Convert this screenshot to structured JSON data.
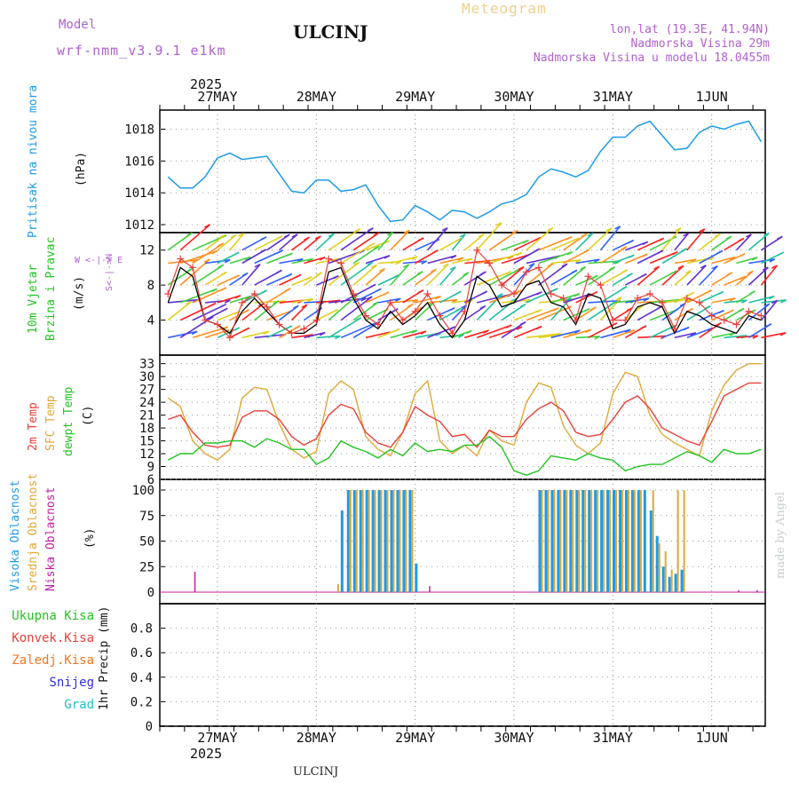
{
  "header": {
    "model_label": "Model",
    "model_value": "wrf-nmm_v3.9.1 e1km",
    "station": "ULCINJ",
    "meteogram": "Meteogram",
    "lonlat": "lon,lat (19.3E, 41.94N)",
    "elevation": "Nadmorska Visina 29m",
    "model_elevation": "Nadmorska Visina u modelu 18.0455m",
    "footer_station": "ULCINJ",
    "watermark": "made by Angel"
  },
  "colors": {
    "pressure": "#1e9be6",
    "temp2m": "#e8403a",
    "sfc": "#e0a838",
    "dew": "#22c322",
    "high": "#1e9be6",
    "mid": "#e0a838",
    "low": "#c020a0",
    "purple": "#b060d0",
    "total": "#22c322",
    "conv": "#e8403a",
    "freezing": "#f07820",
    "snow": "#3030e0",
    "hail": "#20c0c0"
  },
  "chart_data": [
    {
      "type": "line",
      "panel": "pressure",
      "ylabel_name": "Pritisak na nivou mora",
      "ylabel_unit": "(hPa)",
      "year": "2025",
      "date_labels": [
        "27MAY",
        "28MAY",
        "29MAY",
        "30MAY",
        "31MAY",
        "1JUN"
      ],
      "ylim": [
        1011.5,
        1019.2
      ],
      "yticks": [
        1012,
        1014,
        1016,
        1018
      ],
      "x_hours": [
        0,
        3,
        6,
        9,
        12,
        15,
        18,
        21,
        24,
        27,
        30,
        33,
        36,
        39,
        42,
        45,
        48,
        51,
        54,
        57,
        60,
        63,
        66,
        69,
        72,
        75,
        78,
        81,
        84,
        87,
        90,
        93,
        96,
        99,
        102,
        105,
        108,
        111,
        114,
        117,
        120,
        123,
        126,
        129,
        132,
        135,
        138,
        141,
        144
      ],
      "values": [
        1015.0,
        1014.3,
        1014.3,
        1015.0,
        1016.2,
        1016.5,
        1016.1,
        1016.2,
        1016.3,
        1015.2,
        1014.1,
        1014.0,
        1014.8,
        1014.8,
        1014.1,
        1014.2,
        1014.5,
        1013.2,
        1012.2,
        1012.3,
        1013.2,
        1012.8,
        1012.3,
        1012.9,
        1012.8,
        1012.4,
        1012.8,
        1013.3,
        1013.5,
        1013.9,
        1015.0,
        1015.5,
        1015.3,
        1015.0,
        1015.4,
        1016.6,
        1017.5,
        1017.5,
        1018.2,
        1018.5,
        1017.6,
        1016.7,
        1016.8,
        1017.8,
        1018.2,
        1018.0,
        1018.3,
        1018.5,
        1017.2
      ]
    },
    {
      "type": "line",
      "panel": "wind",
      "ylabel_name": "10m Vjetar Brzina i Pravac",
      "ylabel_unit": "(m/s)",
      "compass": "W <- N S -> E",
      "ylim": [
        0,
        14
      ],
      "yticks": [
        4,
        8,
        12
      ],
      "x_hours": [
        0,
        3,
        6,
        9,
        12,
        15,
        18,
        21,
        24,
        27,
        30,
        33,
        36,
        39,
        42,
        45,
        48,
        51,
        54,
        57,
        60,
        63,
        66,
        69,
        72,
        75,
        78,
        81,
        84,
        87,
        90,
        93,
        96,
        99,
        102,
        105,
        108,
        111,
        114,
        117,
        120,
        123,
        126,
        129,
        132,
        135,
        138,
        141,
        144
      ],
      "series": [
        {
          "name": "speed",
          "values": [
            6,
            10,
            9,
            4,
            3.5,
            2.5,
            5,
            6.5,
            5,
            3.5,
            2.5,
            2.5,
            3.5,
            9.5,
            10,
            6.5,
            4,
            3,
            5,
            3.5,
            4.5,
            6,
            3.5,
            2,
            4,
            9,
            8,
            5.5,
            6,
            8,
            8.5,
            6,
            5.5,
            3.5,
            7,
            6.5,
            3,
            3.5,
            5.5,
            6,
            5.5,
            2.5,
            5,
            4.5,
            3.5,
            3,
            2.5,
            4.5,
            4
          ]
        },
        {
          "name": "gust",
          "values": [
            7,
            11,
            10,
            4,
            3.5,
            2,
            6,
            7,
            5.5,
            3.5,
            2.5,
            3,
            4,
            11,
            10.5,
            7,
            4.5,
            3.5,
            6,
            4,
            5,
            7,
            4.5,
            2.5,
            5,
            12,
            10.5,
            8,
            7,
            9.5,
            10,
            7,
            6.5,
            4,
            9,
            8,
            4,
            4,
            6.5,
            7,
            6,
            3,
            6.5,
            6,
            4.5,
            4,
            3.5,
            5,
            4.5
          ]
        }
      ]
    },
    {
      "type": "line",
      "panel": "temperature",
      "ylabel_name": "2m Temp",
      "ylabel_sfc": "SFC Temp",
      "ylabel_dew": "dewpt Temp",
      "ylabel_unit": "(C)",
      "ylim": [
        6,
        35
      ],
      "yticks": [
        6,
        9,
        12,
        15,
        18,
        21,
        24,
        27,
        30,
        33,
        36
      ],
      "x_hours": [
        0,
        3,
        6,
        9,
        12,
        15,
        18,
        21,
        24,
        27,
        30,
        33,
        36,
        39,
        42,
        45,
        48,
        51,
        54,
        57,
        60,
        63,
        66,
        69,
        72,
        75,
        78,
        81,
        84,
        87,
        90,
        93,
        96,
        99,
        102,
        105,
        108,
        111,
        114,
        117,
        120,
        123,
        126,
        129,
        132,
        135,
        138,
        141,
        144
      ],
      "series": [
        {
          "name": "2m",
          "values": [
            20,
            21,
            17,
            14,
            13.5,
            14,
            20.5,
            22,
            22,
            20,
            16,
            14,
            15.5,
            21,
            23.5,
            22.5,
            17,
            14.5,
            13.5,
            17,
            23,
            21,
            19.5,
            16,
            16.5,
            13.5,
            17.5,
            16,
            16,
            20,
            22.5,
            24,
            22,
            17,
            16,
            16.5,
            20,
            24,
            25.5,
            22.5,
            18,
            16.5,
            15,
            14,
            19.5,
            25.5,
            27,
            28.5,
            28.5
          ]
        },
        {
          "name": "SFC",
          "values": [
            25,
            23,
            15,
            12,
            10.5,
            13,
            25,
            27.5,
            27,
            19,
            13,
            11,
            12.5,
            26,
            29,
            27,
            16,
            13,
            11.5,
            17,
            26,
            29,
            15,
            12,
            14,
            11.5,
            17.5,
            15,
            14,
            24,
            28.5,
            27.5,
            18.5,
            14,
            12,
            14.5,
            26,
            31,
            30,
            21,
            16.5,
            14.5,
            13,
            11.5,
            22,
            28,
            31.5,
            33,
            33
          ]
        },
        {
          "name": "dewpoint",
          "values": [
            10.5,
            12,
            12,
            14.5,
            14.5,
            15,
            15,
            13.5,
            15.5,
            14.5,
            13,
            13,
            9.5,
            11,
            15,
            13.5,
            12.5,
            11,
            13,
            11.5,
            14.5,
            12.5,
            13,
            12.5,
            14,
            14,
            16,
            13.5,
            8,
            7,
            8,
            11.5,
            11,
            10.5,
            12,
            11,
            10.5,
            8,
            9,
            9.5,
            9.5,
            11,
            12.5,
            11.5,
            10,
            13,
            12,
            12,
            13
          ]
        }
      ]
    },
    {
      "type": "bar",
      "panel": "clouds",
      "ylabel_high": "Visoka Oblacnost",
      "ylabel_mid": "Srednja Oblacnost",
      "ylabel_low": "Niska Oblacnost",
      "ylabel_unit": "(%)",
      "ylim": [
        0,
        100
      ],
      "yticks": [
        0,
        25,
        50,
        75,
        100
      ],
      "x_hours": [
        0,
        3,
        6,
        9,
        12,
        15,
        18,
        21,
        24,
        27,
        30,
        33,
        36,
        39,
        42,
        45,
        48,
        51,
        54,
        57,
        60,
        63,
        66,
        69,
        72,
        75,
        78,
        81,
        84,
        87,
        90,
        93,
        96,
        99,
        102,
        105,
        108,
        111,
        114,
        117,
        120,
        123,
        126,
        129,
        132,
        135,
        138,
        141,
        144
      ],
      "series": [
        {
          "name": "high",
          "values": [
            0,
            0,
            0,
            0,
            0,
            0,
            0,
            0,
            0,
            0,
            0,
            0,
            0,
            0,
            0,
            0,
            0,
            0,
            0,
            0,
            0,
            0,
            0,
            0,
            0,
            0,
            0,
            0,
            0,
            0,
            0,
            0,
            0,
            0,
            0,
            0,
            0,
            0,
            0,
            0,
            0,
            0,
            0,
            0,
            0,
            0,
            0,
            0,
            0
          ]
        },
        {
          "name": "mid",
          "values": [
            0,
            0,
            0,
            0,
            0,
            0,
            0,
            0,
            0,
            0,
            0,
            0,
            0,
            0,
            0,
            0,
            0,
            0,
            0,
            0,
            0,
            0,
            0,
            0,
            0,
            0,
            0,
            0,
            0,
            0,
            0,
            0,
            0,
            0,
            0,
            0,
            0,
            0,
            0,
            0,
            0,
            0,
            0,
            0,
            0,
            0,
            0,
            0,
            0
          ]
        },
        {
          "name": "low",
          "values": [
            0,
            0,
            0,
            0,
            20,
            0,
            0,
            0,
            0,
            0,
            0,
            0,
            0,
            0,
            0,
            0,
            0,
            0,
            0,
            0,
            0,
            0,
            0,
            0,
            0,
            0,
            0,
            0,
            0,
            0,
            0,
            0,
            0,
            0,
            0,
            0,
            0,
            0,
            0,
            0,
            0,
            0,
            0,
            0,
            0,
            0,
            0,
            0,
            0
          ]
        }
      ],
      "high_bars": [
        [
          29,
          80
        ],
        [
          30,
          100
        ],
        [
          31,
          100
        ],
        [
          32,
          100
        ],
        [
          33,
          100
        ],
        [
          34,
          100
        ],
        [
          35,
          100
        ],
        [
          36,
          100
        ],
        [
          37,
          100
        ],
        [
          38,
          100
        ],
        [
          39,
          100
        ],
        [
          40,
          100
        ],
        [
          41,
          28
        ],
        [
          61,
          100
        ],
        [
          62,
          100
        ],
        [
          63,
          100
        ],
        [
          64,
          100
        ],
        [
          65,
          100
        ],
        [
          66,
          100
        ],
        [
          67,
          100
        ],
        [
          68,
          100
        ],
        [
          69,
          100
        ],
        [
          70,
          100
        ],
        [
          71,
          100
        ],
        [
          72,
          100
        ],
        [
          73,
          100
        ],
        [
          74,
          100
        ],
        [
          75,
          100
        ],
        [
          76,
          100
        ],
        [
          77,
          100
        ],
        [
          78,
          100
        ],
        [
          79,
          80
        ],
        [
          80,
          55
        ],
        [
          81,
          25
        ],
        [
          82,
          15
        ],
        [
          83,
          18
        ],
        [
          84,
          22
        ]
      ],
      "mid_bars": [
        [
          28,
          8
        ],
        [
          30,
          100
        ],
        [
          31,
          100
        ],
        [
          32,
          100
        ],
        [
          33,
          100
        ],
        [
          34,
          100
        ],
        [
          35,
          100
        ],
        [
          36,
          100
        ],
        [
          37,
          100
        ],
        [
          38,
          100
        ],
        [
          39,
          100
        ],
        [
          40,
          100
        ],
        [
          61,
          100
        ],
        [
          62,
          100
        ],
        [
          63,
          100
        ],
        [
          64,
          100
        ],
        [
          65,
          100
        ],
        [
          66,
          100
        ],
        [
          67,
          100
        ],
        [
          68,
          100
        ],
        [
          69,
          100
        ],
        [
          70,
          100
        ],
        [
          71,
          100
        ],
        [
          72,
          100
        ],
        [
          73,
          100
        ],
        [
          74,
          100
        ],
        [
          75,
          100
        ],
        [
          76,
          100
        ],
        [
          77,
          100
        ],
        [
          79,
          100
        ],
        [
          80,
          48
        ],
        [
          81,
          40
        ],
        [
          82,
          22
        ],
        [
          83,
          100
        ],
        [
          84,
          100
        ]
      ],
      "low_bars": [
        [
          5,
          20
        ],
        [
          43,
          6
        ],
        [
          93,
          2
        ],
        [
          96,
          2
        ]
      ]
    },
    {
      "type": "bar",
      "panel": "precipitation",
      "ylabel_unit": "1hr Precip (mm)",
      "legend": [
        "Ukupna Kisa",
        "Konvek.Kisa",
        "Zaledj.Kisa",
        "Snijeg",
        "Grad"
      ],
      "ylim": [
        0,
        1.0
      ],
      "yticks": [
        0,
        0.2,
        0.4,
        0.6,
        0.8
      ],
      "series": [
        {
          "name": "Ukupna Kisa",
          "values": []
        },
        {
          "name": "Konvek.Kisa",
          "values": []
        },
        {
          "name": "Zaledj.Kisa",
          "values": []
        },
        {
          "name": "Snijeg",
          "values": []
        },
        {
          "name": "Grad",
          "values": []
        }
      ]
    }
  ]
}
